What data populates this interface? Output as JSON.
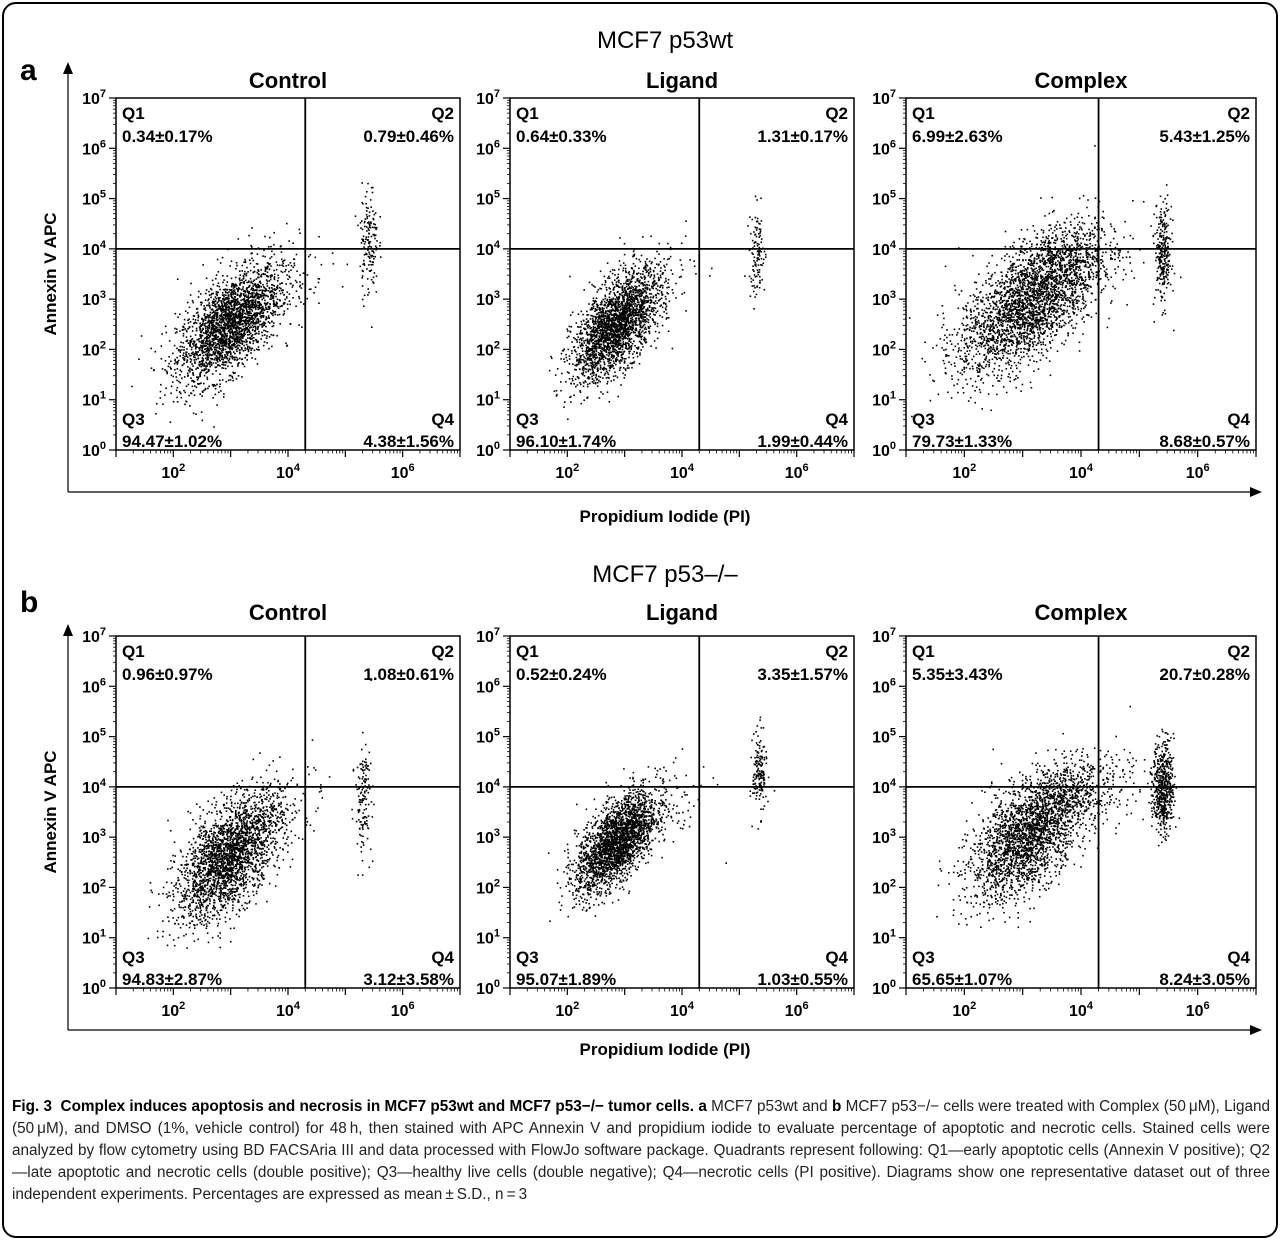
{
  "chart_data": [
    {
      "type": "scatter",
      "panel_letter": "a",
      "title": "MCF7 p53wt",
      "xlabel": "Propidium Iodide (PI)",
      "ylabel": "Annexin V APC",
      "x_scale": "log",
      "y_scale": "log",
      "x_ticks": [
        "10^2",
        "10^4",
        "10^6"
      ],
      "y_ticks": [
        "10^0",
        "10^1",
        "10^2",
        "10^3",
        "10^4",
        "10^5",
        "10^6",
        "10^7"
      ],
      "xlim": [
        10,
        10000000
      ],
      "ylim": [
        1,
        10000000
      ],
      "gate": {
        "x": 20000,
        "y": 10000
      },
      "grid": false,
      "subplots": [
        {
          "title": "Control",
          "quadrants": {
            "Q1": "0.34±0.17%",
            "Q2": "0.79±0.46%",
            "Q3": "94.47±1.02%",
            "Q4": "4.38±1.56%"
          },
          "clusters": [
            {
              "cx": 900,
              "cy": 300,
              "spread_x": 0.45,
              "spread_y": 0.45,
              "tilt": 0.75,
              "n": 2400
            },
            {
              "cx": 4000,
              "cy": 2500,
              "spread_x": 0.55,
              "spread_y": 0.45,
              "tilt": 0.3,
              "n": 160
            },
            {
              "cx": 250000,
              "cy": 15000,
              "spread_x": 0.08,
              "spread_y": 0.55,
              "tilt": 0.0,
              "n": 150
            }
          ]
        },
        {
          "title": "Ligand",
          "quadrants": {
            "Q1": "0.64±0.33%",
            "Q2": "1.31±0.17%",
            "Q3": "96.10±1.74%",
            "Q4": "1.99±0.44%"
          },
          "clusters": [
            {
              "cx": 700,
              "cy": 300,
              "spread_x": 0.38,
              "spread_y": 0.42,
              "tilt": 0.85,
              "n": 2400
            },
            {
              "cx": 2500,
              "cy": 2500,
              "spread_x": 0.45,
              "spread_y": 0.4,
              "tilt": 0.3,
              "n": 90
            },
            {
              "cx": 200000,
              "cy": 8000,
              "spread_x": 0.07,
              "spread_y": 0.45,
              "tilt": 0.0,
              "n": 110
            }
          ]
        },
        {
          "title": "Complex",
          "quadrants": {
            "Q1": "6.99±2.63%",
            "Q2": "5.43±1.25%",
            "Q3": "79.73±1.33%",
            "Q4": "8.68±0.57%"
          },
          "clusters": [
            {
              "cx": 1200,
              "cy": 800,
              "spread_x": 0.6,
              "spread_y": 0.55,
              "tilt": 0.7,
              "n": 2600
            },
            {
              "cx": 5000,
              "cy": 6000,
              "spread_x": 0.5,
              "spread_y": 0.4,
              "tilt": 0.3,
              "n": 400
            },
            {
              "cx": 250000,
              "cy": 8000,
              "spread_x": 0.07,
              "spread_y": 0.5,
              "tilt": 0.0,
              "n": 260
            }
          ]
        }
      ]
    },
    {
      "type": "scatter",
      "panel_letter": "b",
      "title": "MCF7 p53–/–",
      "xlabel": "Propidium Iodide (PI)",
      "ylabel": "Annexin V APC",
      "x_scale": "log",
      "y_scale": "log",
      "x_ticks": [
        "10^2",
        "10^4",
        "10^6"
      ],
      "y_ticks": [
        "10^0",
        "10^1",
        "10^2",
        "10^3",
        "10^4",
        "10^5",
        "10^6",
        "10^7"
      ],
      "xlim": [
        10,
        10000000
      ],
      "ylim": [
        1,
        10000000
      ],
      "gate": {
        "x": 20000,
        "y": 10000
      },
      "grid": false,
      "subplots": [
        {
          "title": "Control",
          "quadrants": {
            "Q1": "0.96±0.97%",
            "Q2": "1.08±0.61%",
            "Q3": "94.83±2.87%",
            "Q4": "3.12±3.58%"
          },
          "clusters": [
            {
              "cx": 900,
              "cy": 400,
              "spread_x": 0.45,
              "spread_y": 0.5,
              "tilt": 0.8,
              "n": 2400
            },
            {
              "cx": 4000,
              "cy": 3000,
              "spread_x": 0.55,
              "spread_y": 0.45,
              "tilt": 0.3,
              "n": 130
            },
            {
              "cx": 200000,
              "cy": 6000,
              "spread_x": 0.07,
              "spread_y": 0.55,
              "tilt": 0.0,
              "n": 140
            }
          ]
        },
        {
          "title": "Ligand",
          "quadrants": {
            "Q1": "0.52±0.24%",
            "Q2": "3.35±1.57%",
            "Q3": "95.07±1.89%",
            "Q4": "1.03±0.55%"
          },
          "clusters": [
            {
              "cx": 700,
              "cy": 800,
              "spread_x": 0.35,
              "spread_y": 0.38,
              "tilt": 0.85,
              "n": 2400
            },
            {
              "cx": 3000,
              "cy": 4000,
              "spread_x": 0.5,
              "spread_y": 0.45,
              "tilt": 0.2,
              "n": 110
            },
            {
              "cx": 220000,
              "cy": 20000,
              "spread_x": 0.06,
              "spread_y": 0.4,
              "tilt": 0.0,
              "n": 160
            }
          ]
        },
        {
          "title": "Complex",
          "quadrants": {
            "Q1": "5.35±3.43%",
            "Q2": "20.7±0.28%",
            "Q3": "65.65±1.07%",
            "Q4": "8.24±3.05%"
          },
          "clusters": [
            {
              "cx": 1200,
              "cy": 1000,
              "spread_x": 0.5,
              "spread_y": 0.5,
              "tilt": 0.7,
              "n": 2200
            },
            {
              "cx": 6000,
              "cy": 8000,
              "spread_x": 0.55,
              "spread_y": 0.35,
              "tilt": 0.2,
              "n": 500
            },
            {
              "cx": 250000,
              "cy": 10000,
              "spread_x": 0.09,
              "spread_y": 0.45,
              "tilt": 0.0,
              "n": 550
            }
          ]
        }
      ]
    }
  ],
  "caption": {
    "fig_label": "Fig. 3",
    "heading": "Complex induces apoptosis and necrosis in MCF7 p53wt and MCF7 p53−/− tumor cells.",
    "letter_a": "a",
    "text_1": "MCF7 p53wt and",
    "letter_b": "b",
    "text_2": "MCF7 p53−/− cells were treated with Complex (50 μM), Ligand (50 μM), and DMSO (1%, vehicle control) for 48 h, then stained with APC Annexin V and propidium iodide to evaluate percentage of apoptotic and necrotic cells. Stained cells were analyzed by flow cytometry using BD FACSAria III and data processed with FlowJo software package. Quadrants represent following: Q1—early apoptotic cells (Annexin V positive); Q2—late apoptotic and necrotic cells (double positive); Q3—healthy live cells (double negative); Q4—necrotic cells (PI positive). Diagrams show one representative dataset out of three independent experiments. Percentages are expressed as mean ± S.D., n = 3"
  }
}
